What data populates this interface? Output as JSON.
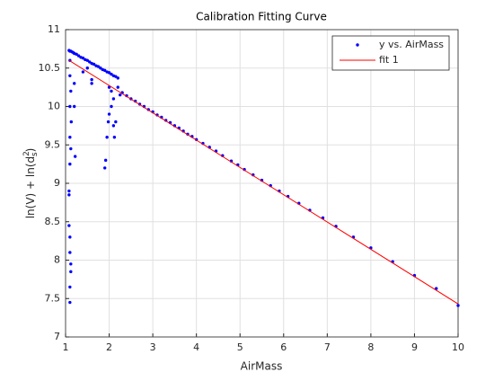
{
  "chart_data": {
    "type": "scatter",
    "title": "Calibration Fitting Curve",
    "xlabel": "AirMass",
    "ylabel": {
      "text": "ln(V) + ln(d",
      "sup": "2",
      "sub": "s",
      "end": ")"
    },
    "xlim": [
      1,
      10
    ],
    "xticks": [
      1,
      2,
      3,
      4,
      5,
      6,
      7,
      8,
      9,
      10
    ],
    "ylim": [
      7,
      11
    ],
    "yticks": [
      7,
      7.5,
      8,
      8.5,
      9,
      9.5,
      10,
      10.5,
      11
    ],
    "grid": true,
    "legend": "top-right",
    "series": [
      {
        "name": "y vs. AirMass",
        "color": "#0000ff",
        "kind": "scatter",
        "x": [
          1.08,
          1.1,
          1.12,
          1.15,
          1.18,
          1.2,
          1.25,
          1.3,
          1.35,
          1.4,
          1.45,
          1.5,
          1.55,
          1.6,
          1.65,
          1.7,
          1.75,
          1.8,
          1.85,
          1.9,
          1.95,
          2.0,
          2.05,
          2.1,
          2.15,
          2.2,
          1.1,
          1.1,
          1.12,
          1.1,
          1.13,
          1.1,
          1.12,
          1.1,
          1.08,
          1.08,
          1.08,
          1.1,
          1.1,
          1.12,
          1.12,
          1.1,
          1.1,
          1.2,
          1.2,
          1.22,
          1.4,
          1.5,
          1.6,
          1.6,
          1.9,
          1.92,
          1.95,
          1.98,
          2.0,
          2.05,
          2.05,
          2.1,
          2.1,
          2.12,
          2.15,
          2.2,
          2.25,
          2.0,
          2.3,
          2.4,
          2.5,
          2.6,
          2.7,
          2.8,
          2.9,
          3.0,
          3.1,
          3.2,
          3.3,
          3.4,
          3.5,
          3.6,
          3.7,
          3.8,
          3.9,
          4.0,
          4.15,
          4.3,
          4.45,
          4.6,
          4.8,
          4.95,
          5.1,
          5.3,
          5.5,
          5.7,
          5.9,
          6.1,
          6.35,
          6.6,
          6.9,
          7.2,
          7.6,
          8.0,
          8.5,
          9.0,
          9.5,
          10.0
        ],
        "values": [
          10.73,
          10.72,
          10.72,
          10.71,
          10.7,
          10.69,
          10.68,
          10.66,
          10.64,
          10.63,
          10.61,
          10.6,
          10.58,
          10.56,
          10.55,
          10.53,
          10.52,
          10.5,
          10.48,
          10.47,
          10.45,
          10.44,
          10.42,
          10.4,
          10.39,
          10.37,
          10.6,
          10.4,
          10.2,
          10.0,
          9.8,
          9.6,
          9.45,
          9.25,
          8.9,
          8.85,
          8.45,
          8.3,
          8.1,
          7.95,
          7.85,
          7.65,
          7.45,
          10.3,
          10.0,
          9.35,
          10.45,
          10.5,
          10.35,
          10.3,
          9.2,
          9.3,
          9.6,
          9.8,
          9.9,
          10.0,
          10.2,
          10.1,
          9.75,
          9.6,
          9.8,
          10.25,
          10.15,
          10.25,
          10.18,
          10.14,
          10.1,
          10.07,
          10.03,
          10.0,
          9.96,
          9.93,
          9.89,
          9.86,
          9.82,
          9.79,
          9.75,
          9.72,
          9.68,
          9.64,
          9.61,
          9.57,
          9.52,
          9.47,
          9.42,
          9.36,
          9.29,
          9.24,
          9.18,
          9.11,
          9.04,
          8.97,
          8.9,
          8.83,
          8.74,
          8.65,
          8.55,
          8.44,
          8.3,
          8.16,
          7.98,
          7.8,
          7.63,
          7.41
        ]
      },
      {
        "name": "fit 1",
        "color": "#ff0000",
        "kind": "line",
        "x": [
          1.08,
          10
        ],
        "values": [
          10.6,
          7.43
        ]
      }
    ]
  }
}
